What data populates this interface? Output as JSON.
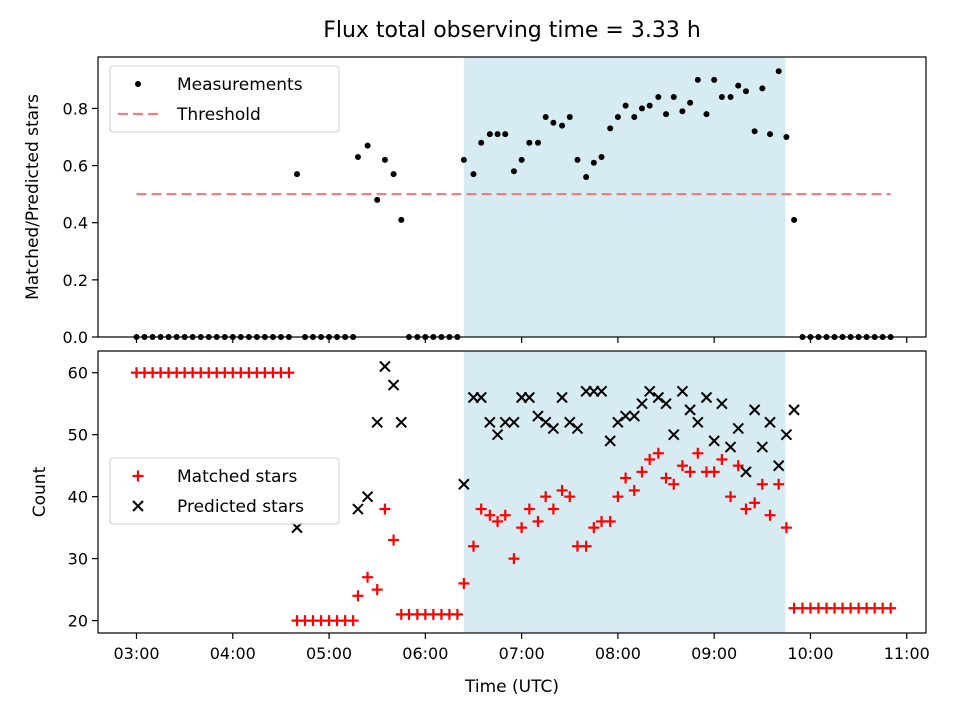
{
  "chart_data": {
    "type": "scatter",
    "title": "Flux total observing time = 3.33 h",
    "xlabel": "Time (UTC)",
    "x_ticks": [
      "03:00",
      "04:00",
      "05:00",
      "06:00",
      "07:00",
      "08:00",
      "09:00",
      "10:00",
      "11:00"
    ],
    "x_range_hours": [
      2.6,
      11.2
    ],
    "observing_window_hours": [
      6.4,
      9.74
    ],
    "colors": {
      "measurements": "#000000",
      "threshold": "#f08080",
      "matched": "#ff0000",
      "predicted": "#000000",
      "window": "#add8e6"
    },
    "panels": [
      {
        "ylabel": "Matched/Predicted stars",
        "ylim": [
          0,
          0.98
        ],
        "yticks": [
          0.0,
          0.2,
          0.4,
          0.6,
          0.8
        ],
        "legend": "top-left",
        "series": [
          {
            "name": "Measurements",
            "marker": "dot",
            "x": [
              3.0,
              3.083,
              3.167,
              3.25,
              3.333,
              3.417,
              3.5,
              3.583,
              3.667,
              3.75,
              3.833,
              3.917,
              4.0,
              4.083,
              4.167,
              4.25,
              4.333,
              4.417,
              4.5,
              4.583,
              4.667,
              4.75,
              4.833,
              4.917,
              5.0,
              5.083,
              5.167,
              5.25,
              5.3,
              5.4,
              5.5,
              5.58,
              5.67,
              5.75,
              5.83,
              5.917,
              6.0,
              6.083,
              6.167,
              6.25,
              6.333,
              6.4,
              6.5,
              6.58,
              6.67,
              6.75,
              6.83,
              6.92,
              7.0,
              7.08,
              7.17,
              7.25,
              7.33,
              7.42,
              7.5,
              7.58,
              7.67,
              7.75,
              7.83,
              7.92,
              8.0,
              8.08,
              8.17,
              8.25,
              8.33,
              8.42,
              8.5,
              8.58,
              8.67,
              8.75,
              8.83,
              8.92,
              9.0,
              9.08,
              9.17,
              9.25,
              9.33,
              9.42,
              9.5,
              9.58,
              9.67,
              9.75,
              9.83,
              9.917,
              10.0,
              10.083,
              10.167,
              10.25,
              10.333,
              10.417,
              10.5,
              10.583,
              10.667,
              10.75,
              10.833
            ],
            "y": [
              0,
              0,
              0,
              0,
              0,
              0,
              0,
              0,
              0,
              0,
              0,
              0,
              0,
              0,
              0,
              0,
              0,
              0,
              0,
              0,
              0.57,
              0,
              0,
              0,
              0,
              0,
              0,
              0,
              0.63,
              0.67,
              0.48,
              0.62,
              0.57,
              0.41,
              0,
              0,
              0,
              0,
              0,
              0,
              0,
              0.62,
              0.57,
              0.68,
              0.71,
              0.71,
              0.71,
              0.58,
              0.62,
              0.68,
              0.68,
              0.77,
              0.75,
              0.74,
              0.77,
              0.62,
              0.56,
              0.61,
              0.63,
              0.73,
              0.77,
              0.81,
              0.77,
              0.8,
              0.81,
              0.84,
              0.78,
              0.84,
              0.79,
              0.82,
              0.9,
              0.78,
              0.9,
              0.84,
              0.84,
              0.88,
              0.86,
              0.72,
              0.87,
              0.71,
              0.93,
              0.7,
              0.41,
              0,
              0,
              0,
              0,
              0,
              0,
              0,
              0,
              0,
              0,
              0,
              0
            ]
          },
          {
            "name": "Threshold",
            "marker": "dashed-line",
            "x": [
              3.0,
              10.833
            ],
            "y": [
              0.5,
              0.5
            ]
          }
        ]
      },
      {
        "ylabel": "Count",
        "ylim": [
          18,
          63.5
        ],
        "yticks": [
          20,
          30,
          40,
          50,
          60
        ],
        "legend": "center-left",
        "series": [
          {
            "name": "Matched stars",
            "marker": "plus",
            "x": [
              3.0,
              3.083,
              3.167,
              3.25,
              3.333,
              3.417,
              3.5,
              3.583,
              3.667,
              3.75,
              3.833,
              3.917,
              4.0,
              4.083,
              4.167,
              4.25,
              4.333,
              4.417,
              4.5,
              4.583,
              4.667,
              4.75,
              4.833,
              4.917,
              5.0,
              5.083,
              5.167,
              5.25,
              5.3,
              5.4,
              5.5,
              5.58,
              5.67,
              5.75,
              5.83,
              5.917,
              6.0,
              6.083,
              6.167,
              6.25,
              6.333,
              6.4,
              6.5,
              6.58,
              6.67,
              6.75,
              6.83,
              6.92,
              7.0,
              7.08,
              7.17,
              7.25,
              7.33,
              7.42,
              7.5,
              7.58,
              7.67,
              7.75,
              7.83,
              7.92,
              8.0,
              8.08,
              8.17,
              8.25,
              8.33,
              8.42,
              8.5,
              8.58,
              8.67,
              8.75,
              8.83,
              8.92,
              9.0,
              9.08,
              9.17,
              9.25,
              9.33,
              9.42,
              9.5,
              9.58,
              9.67,
              9.75,
              9.83,
              9.917,
              10.0,
              10.083,
              10.167,
              10.25,
              10.333,
              10.417,
              10.5,
              10.583,
              10.667,
              10.75,
              10.833
            ],
            "y": [
              60,
              60,
              60,
              60,
              60,
              60,
              60,
              60,
              60,
              60,
              60,
              60,
              60,
              60,
              60,
              60,
              60,
              60,
              60,
              60,
              20,
              20,
              20,
              20,
              20,
              20,
              20,
              20,
              24,
              27,
              25,
              38,
              33,
              21,
              21,
              21,
              21,
              21,
              21,
              21,
              21,
              26,
              32,
              38,
              37,
              36,
              37,
              30,
              35,
              38,
              36,
              40,
              38,
              41,
              40,
              32,
              32,
              35,
              36,
              36,
              40,
              43,
              41,
              44,
              46,
              47,
              43,
              42,
              45,
              44,
              47,
              44,
              44,
              46,
              40,
              45,
              38,
              39,
              42,
              37,
              42,
              35,
              22,
              22,
              22,
              22,
              22,
              22,
              22,
              22,
              22,
              22,
              22,
              22,
              22
            ]
          },
          {
            "name": "Predicted stars",
            "marker": "x",
            "x": [
              4.667,
              5.3,
              5.4,
              5.5,
              5.58,
              5.67,
              5.75,
              6.4,
              6.5,
              6.58,
              6.67,
              6.75,
              6.83,
              6.92,
              7.0,
              7.08,
              7.17,
              7.25,
              7.33,
              7.42,
              7.5,
              7.58,
              7.67,
              7.75,
              7.83,
              7.92,
              8.0,
              8.08,
              8.17,
              8.25,
              8.33,
              8.42,
              8.5,
              8.58,
              8.67,
              8.75,
              8.83,
              8.92,
              9.0,
              9.08,
              9.17,
              9.25,
              9.33,
              9.42,
              9.5,
              9.58,
              9.67,
              9.75,
              9.83
            ],
            "y": [
              35,
              38,
              40,
              52,
              61,
              58,
              52,
              42,
              56,
              56,
              52,
              50,
              52,
              52,
              56,
              56,
              53,
              52,
              51,
              56,
              52,
              51,
              57,
              57,
              57,
              49,
              52,
              53,
              53,
              55,
              57,
              56,
              55,
              50,
              57,
              54,
              52,
              56,
              49,
              55,
              48,
              51,
              44,
              54,
              48,
              52,
              45,
              50,
              54
            ]
          }
        ]
      }
    ]
  }
}
